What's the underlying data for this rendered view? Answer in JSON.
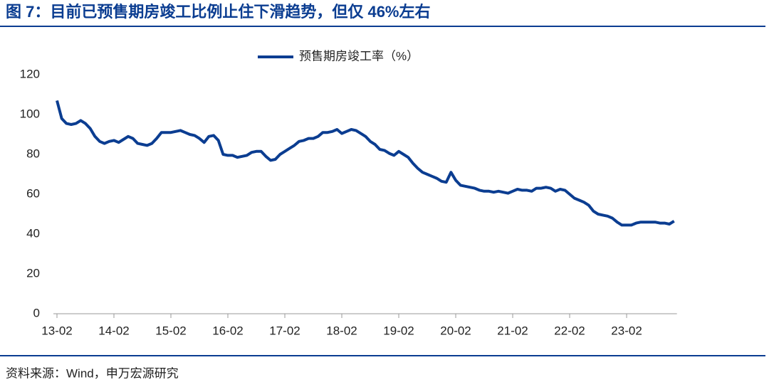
{
  "title": "图 7：目前已预售期房竣工比例止住下滑趋势，但仅 46%左右",
  "source": "资料来源：Wind，申万宏源研究",
  "chart_data": {
    "type": "line",
    "categories": [
      "13-02",
      null,
      null,
      null,
      null,
      null,
      null,
      null,
      null,
      null,
      null,
      null,
      "14-02",
      null,
      null,
      null,
      null,
      null,
      null,
      null,
      null,
      null,
      null,
      null,
      "15-02",
      null,
      null,
      null,
      null,
      null,
      null,
      null,
      null,
      null,
      null,
      null,
      "16-02",
      null,
      null,
      null,
      null,
      null,
      null,
      null,
      null,
      null,
      null,
      null,
      "17-02",
      null,
      null,
      null,
      null,
      null,
      null,
      null,
      null,
      null,
      null,
      null,
      "18-02",
      null,
      null,
      null,
      null,
      null,
      null,
      null,
      null,
      null,
      null,
      null,
      "19-02",
      null,
      null,
      null,
      null,
      null,
      null,
      null,
      null,
      null,
      null,
      null,
      "20-02",
      null,
      null,
      null,
      null,
      null,
      null,
      null,
      null,
      null,
      null,
      null,
      "21-02",
      null,
      null,
      null,
      null,
      null,
      null,
      null,
      null,
      null,
      null,
      null,
      "22-02",
      null,
      null,
      null,
      null,
      null,
      null,
      null,
      null,
      null,
      null,
      null,
      "23-02",
      null,
      null,
      null,
      null,
      null,
      null,
      null,
      null,
      null,
      null
    ],
    "series": [
      {
        "name": "预售期房竣工率（%）",
        "color": "#0b3d91",
        "values": [
          107,
          98,
          95.5,
          95,
          95.5,
          97,
          95.5,
          93,
          89,
          86.5,
          85.5,
          86.5,
          87,
          86,
          87.5,
          89,
          88,
          85.5,
          85,
          84.5,
          85.5,
          88,
          91,
          91,
          91,
          91.5,
          92,
          91,
          90,
          89.5,
          88,
          86,
          89,
          89.5,
          87,
          80,
          79.5,
          79.5,
          78.5,
          79,
          79.5,
          81,
          81.5,
          81.5,
          79,
          77,
          77.5,
          80,
          81.5,
          83,
          84.5,
          86.5,
          87,
          88,
          88,
          89,
          91,
          91,
          91.5,
          92.5,
          90.5,
          91.5,
          92.5,
          92,
          90.5,
          89,
          86.5,
          85,
          82.5,
          82,
          80.5,
          79.5,
          81.5,
          80,
          78.5,
          75.5,
          73,
          71,
          70,
          69,
          68,
          66.5,
          66,
          71,
          67,
          64.5,
          64,
          63.5,
          63,
          62,
          61.5,
          61.5,
          61,
          61.5,
          61,
          60.5,
          61.5,
          62.5,
          62,
          62,
          61.5,
          63,
          63,
          63.5,
          63,
          61.5,
          62.5,
          62,
          60,
          58,
          57,
          56,
          54.5,
          51.5,
          50,
          49.5,
          49,
          48,
          46,
          44.5,
          44.5,
          44.5,
          45.5,
          46,
          46,
          46,
          46,
          45.5,
          45.5,
          45,
          46.5
        ]
      }
    ],
    "ylim": [
      0,
      120
    ],
    "yticks": [
      0,
      20,
      40,
      60,
      80,
      100,
      120
    ]
  }
}
